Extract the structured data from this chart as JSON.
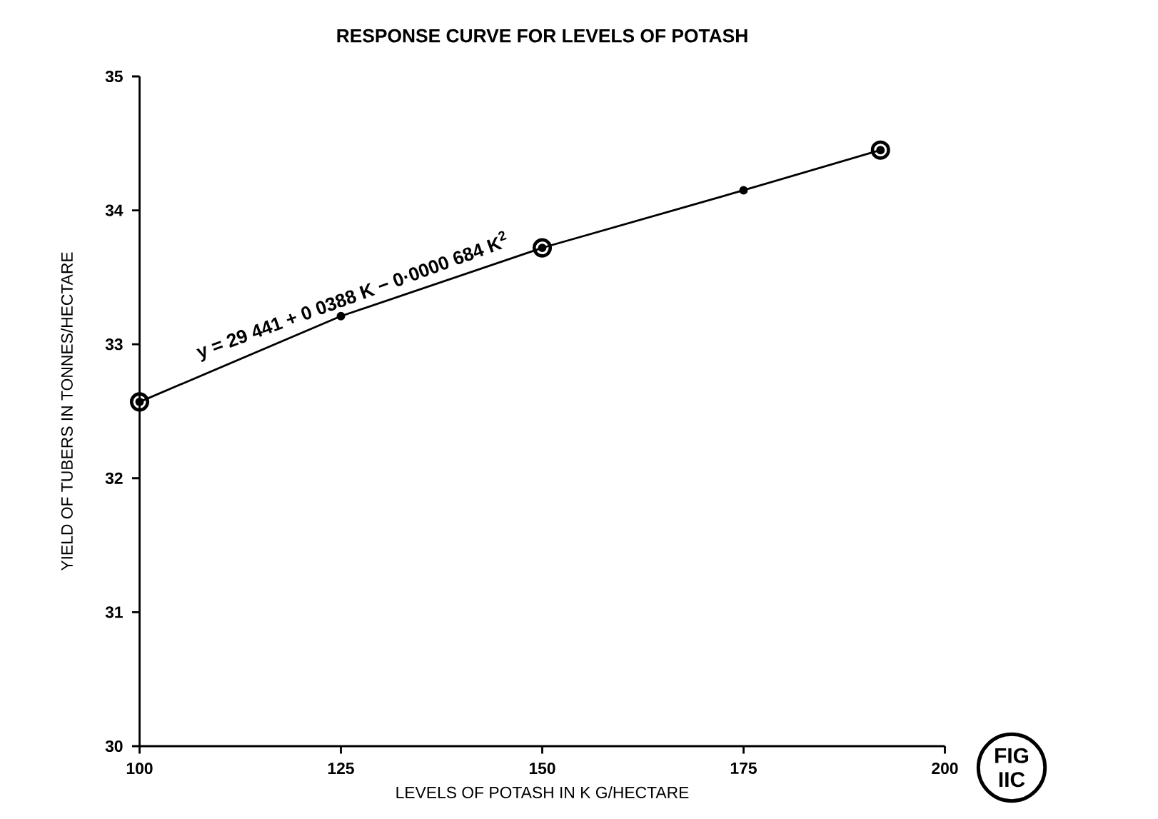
{
  "chart_data": {
    "type": "line",
    "title": "RESPONSE CURVE FOR LEVELS OF POTASH",
    "xlabel": "LEVELS OF POTASH IN K G/HECTARE",
    "ylabel": "YIELD OF TUBERS IN TONNES/HECTARE",
    "xlim": [
      100,
      200
    ],
    "xticks": [
      100,
      125,
      150,
      175,
      200
    ],
    "ylim": [
      30,
      35
    ],
    "yticks": [
      30,
      31,
      32,
      33,
      34,
      35
    ],
    "series": [
      {
        "color": "#000000",
        "marker": "circle",
        "x": [
          100,
          125,
          150,
          175,
          192
        ],
        "values": [
          32.57,
          33.21,
          33.72,
          34.15,
          34.45
        ]
      },
      {
        "type": "scatter",
        "color": "#000000",
        "marker": "circle",
        "x": [
          100,
          150,
          192
        ],
        "values": [
          32.57,
          33.72,
          34.45
        ]
      }
    ],
    "annotations": [
      "y = 29 441 + 0 0388 K − 0·0000 684 K$^{2}$",
      "FIG",
      "IIC"
    ]
  }
}
